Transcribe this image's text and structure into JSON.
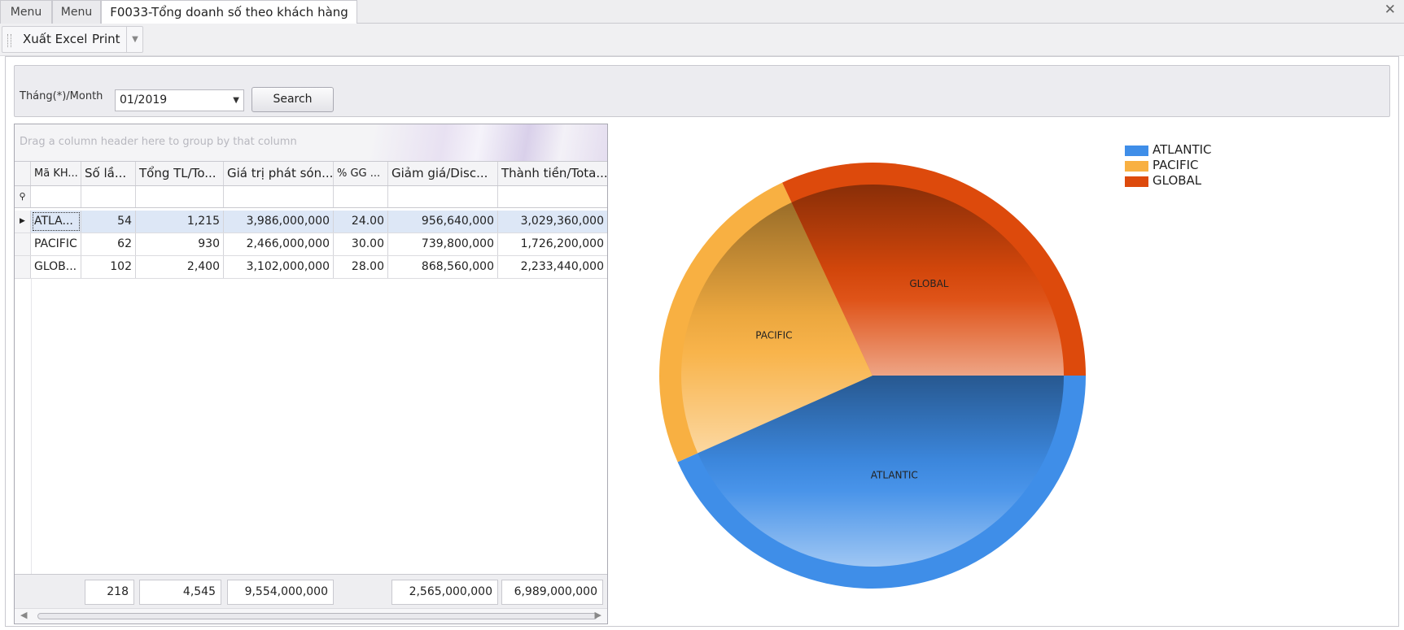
{
  "tabs": [
    {
      "label": "Menu"
    },
    {
      "label": "Menu"
    },
    {
      "label": "F0033-Tổng doanh số theo khách hàng"
    }
  ],
  "toolbar": {
    "export_label": "Xuất Excel",
    "print_label": "Print"
  },
  "filter": {
    "month_label": "Tháng(*)/Month",
    "month_value": "01/2019",
    "search_label": "Search"
  },
  "grid": {
    "group_hint": "Drag a column header here to group by that column",
    "columns": [
      "Mã KH...",
      "Số lầ...",
      "Tổng TL/To...",
      "Giá trị phát són...",
      "% GG ...",
      "Giảm giá/Disc...",
      "Thành tiền/Tota..."
    ],
    "rows": [
      [
        "ATLA...",
        "54",
        "1,215",
        "3,986,000,000",
        "24.00",
        "956,640,000",
        "3,029,360,000"
      ],
      [
        "PACIFIC",
        "62",
        "930",
        "2,466,000,000",
        "30.00",
        "739,800,000",
        "1,726,200,000"
      ],
      [
        "GLOB...",
        "102",
        "2,400",
        "3,102,000,000",
        "28.00",
        "868,560,000",
        "2,233,440,000"
      ]
    ],
    "totals": [
      "218",
      "4,545",
      "9,554,000,000",
      "2,565,000,000",
      "6,989,000,000"
    ]
  },
  "chart_data": {
    "type": "pie",
    "categories": [
      "ATLANTIC",
      "PACIFIC",
      "GLOBAL"
    ],
    "values": [
      3029360000,
      1726200000,
      2233440000
    ],
    "colors": [
      "#3f8ee8",
      "#f8b042",
      "#dd4a0c"
    ],
    "legend_position": "top-right"
  }
}
